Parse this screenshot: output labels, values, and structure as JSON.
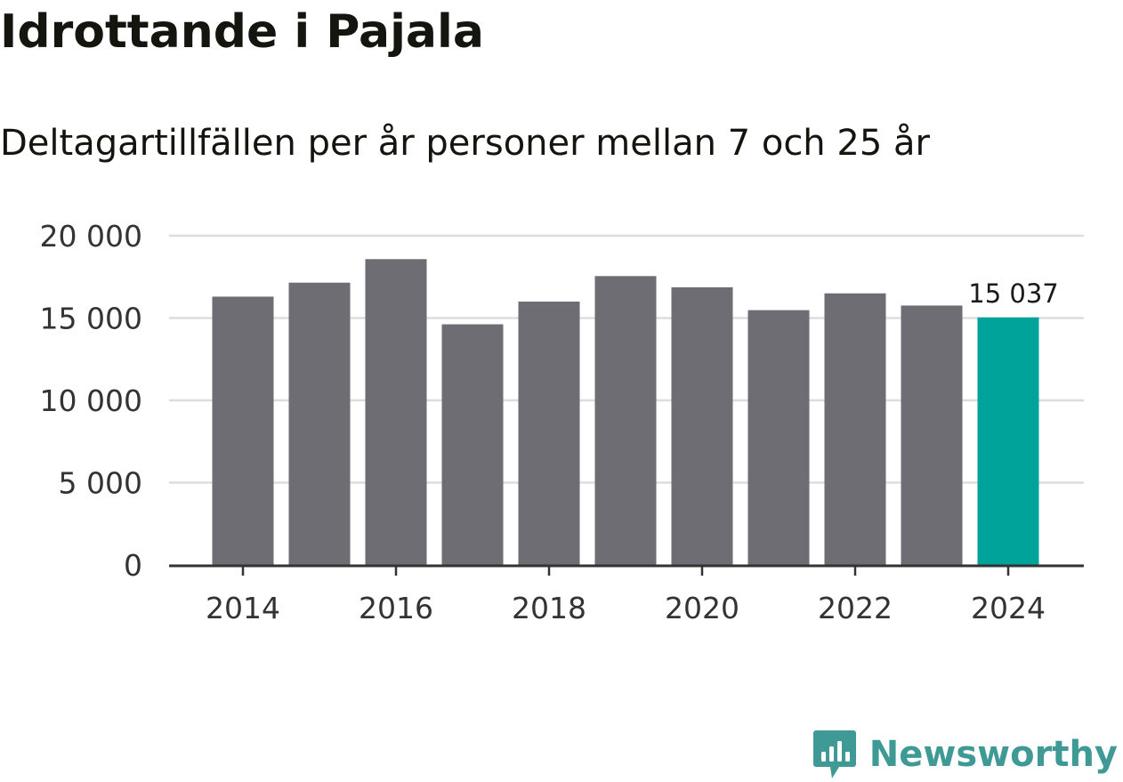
{
  "header": {
    "title": "Idrottande i Pajala",
    "subtitle": "Deltagartillfällen per år personer mellan 7 och 25 år"
  },
  "brand": {
    "name": "Newsworthy",
    "icon": "newsworthy-logo-icon",
    "color": "#3f9a96"
  },
  "chart_data": {
    "type": "bar",
    "title": "Idrottande i Pajala",
    "subtitle": "Deltagartillfällen per år personer mellan 7 och 25 år",
    "xlabel": "",
    "ylabel": "",
    "categories": [
      "2014",
      "2015",
      "2016",
      "2017",
      "2018",
      "2019",
      "2020",
      "2021",
      "2022",
      "2023",
      "2024"
    ],
    "values": [
      16300,
      17150,
      18580,
      14620,
      16000,
      17550,
      16870,
      15480,
      16500,
      15760,
      15037
    ],
    "ylim": [
      0,
      20000
    ],
    "yticks": [
      0,
      5000,
      10000,
      15000,
      20000
    ],
    "ytick_labels": [
      "0",
      "5 000",
      "10 000",
      "15 000",
      "20 000"
    ],
    "xtick_labels": [
      "2014",
      "2016",
      "2018",
      "2020",
      "2022",
      "2024"
    ],
    "annotations": [
      {
        "category": "2024",
        "label": "15 037"
      }
    ],
    "grid": true,
    "colors": {
      "bar": "#6e6d73",
      "highlight": "#00a39a",
      "grid": "#dddddd",
      "axis": "#333333"
    }
  }
}
